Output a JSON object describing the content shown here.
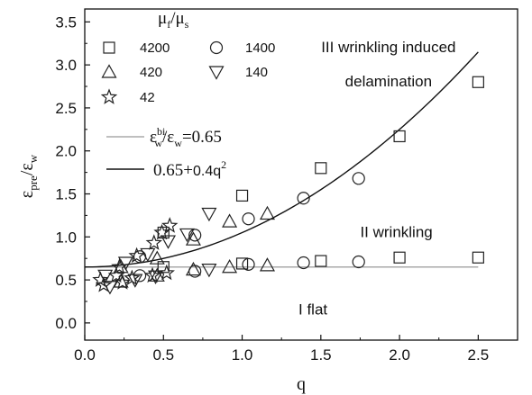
{
  "chart_data": {
    "type": "scatter",
    "xlabel": "q",
    "ylabel_main": "ε",
    "ylabel_sub1": "pre",
    "ylabel_sep": "/ε",
    "ylabel_sub2": "w",
    "xlim": [
      0,
      2.75
    ],
    "ylim": [
      -0.2,
      3.65
    ],
    "xticks": [
      0.0,
      0.5,
      1.0,
      1.5,
      2.0,
      2.5
    ],
    "xtick_labels": [
      "0.0",
      "0.5",
      "1.0",
      "1.5",
      "2.0",
      "2.5"
    ],
    "yticks": [
      0.0,
      0.5,
      1.0,
      1.5,
      2.0,
      2.5,
      3.0,
      3.5
    ],
    "ytick_labels": [
      "0.0",
      "0.5",
      "1.0",
      "1.5",
      "2.0",
      "2.5",
      "3.0",
      "3.5"
    ],
    "grid": false,
    "legend_title": {
      "main1": "μ",
      "sub1": "f",
      "main2": "/μ",
      "sub2": "s"
    },
    "series": [
      {
        "name": "4200",
        "marker": "square",
        "points": [
          [
            0.5,
            1.05
          ],
          [
            0.5,
            0.65
          ],
          [
            1.0,
            1.48
          ],
          [
            1.0,
            0.69
          ],
          [
            1.5,
            1.8
          ],
          [
            1.5,
            0.72
          ],
          [
            2.0,
            2.17
          ],
          [
            2.0,
            0.76
          ],
          [
            2.5,
            2.8
          ],
          [
            2.5,
            0.76
          ]
        ]
      },
      {
        "name": "1400",
        "marker": "circle",
        "points": [
          [
            0.35,
            0.77
          ],
          [
            0.35,
            0.55
          ],
          [
            0.7,
            1.02
          ],
          [
            0.7,
            0.6
          ],
          [
            1.04,
            1.21
          ],
          [
            1.04,
            0.68
          ],
          [
            1.39,
            1.45
          ],
          [
            1.39,
            0.7
          ],
          [
            1.74,
            1.68
          ],
          [
            1.74,
            0.71
          ]
        ]
      },
      {
        "name": "420",
        "marker": "triangle-up",
        "points": [
          [
            0.23,
            0.65
          ],
          [
            0.23,
            0.48
          ],
          [
            0.46,
            0.75
          ],
          [
            0.46,
            0.55
          ],
          [
            0.69,
            0.97
          ],
          [
            0.69,
            0.62
          ],
          [
            0.92,
            1.18
          ],
          [
            0.92,
            0.65
          ],
          [
            1.16,
            1.27
          ],
          [
            1.16,
            0.67
          ]
        ]
      },
      {
        "name": "140",
        "marker": "triangle-down",
        "points": [
          [
            0.13,
            0.55
          ],
          [
            0.16,
            0.42
          ],
          [
            0.26,
            0.7
          ],
          [
            0.32,
            0.5
          ],
          [
            0.4,
            0.8
          ],
          [
            0.45,
            0.54
          ],
          [
            0.53,
            0.95
          ],
          [
            0.65,
            1.03
          ],
          [
            0.79,
            1.27
          ],
          [
            0.79,
            0.62
          ]
        ]
      },
      {
        "name": "42",
        "marker": "star",
        "points": [
          [
            0.1,
            0.5
          ],
          [
            0.12,
            0.44
          ],
          [
            0.2,
            0.55
          ],
          [
            0.22,
            0.65
          ],
          [
            0.24,
            0.47
          ],
          [
            0.3,
            0.52
          ],
          [
            0.33,
            0.78
          ],
          [
            0.43,
            0.55
          ],
          [
            0.44,
            0.93
          ],
          [
            0.49,
            1.05
          ],
          [
            0.52,
            0.58
          ],
          [
            0.54,
            1.13
          ]
        ]
      }
    ],
    "lines": [
      {
        "name_main": "ε",
        "name_sup1": "bi",
        "name_sub1": "w",
        "name_sep": "/ε",
        "name_sub2": "w",
        "name_tail": "=0.65",
        "kind": "constant",
        "value": 0.65,
        "color": "#aaaaaa"
      },
      {
        "name_a": "0.65+",
        "name_b": "0.4q",
        "name_sup": "2",
        "kind": "quadratic",
        "a": 0.65,
        "b": 0.4,
        "color": "#111111"
      }
    ],
    "annotations": [
      {
        "text": "III  wrinkling induced",
        "x": 1.93,
        "y": 3.15
      },
      {
        "text": "delamination",
        "x": 1.93,
        "y": 2.75
      },
      {
        "text": "II  wrinkling",
        "x": 1.98,
        "y": 1.0
      },
      {
        "text": "I flat",
        "x": 1.45,
        "y": 0.1
      }
    ]
  }
}
